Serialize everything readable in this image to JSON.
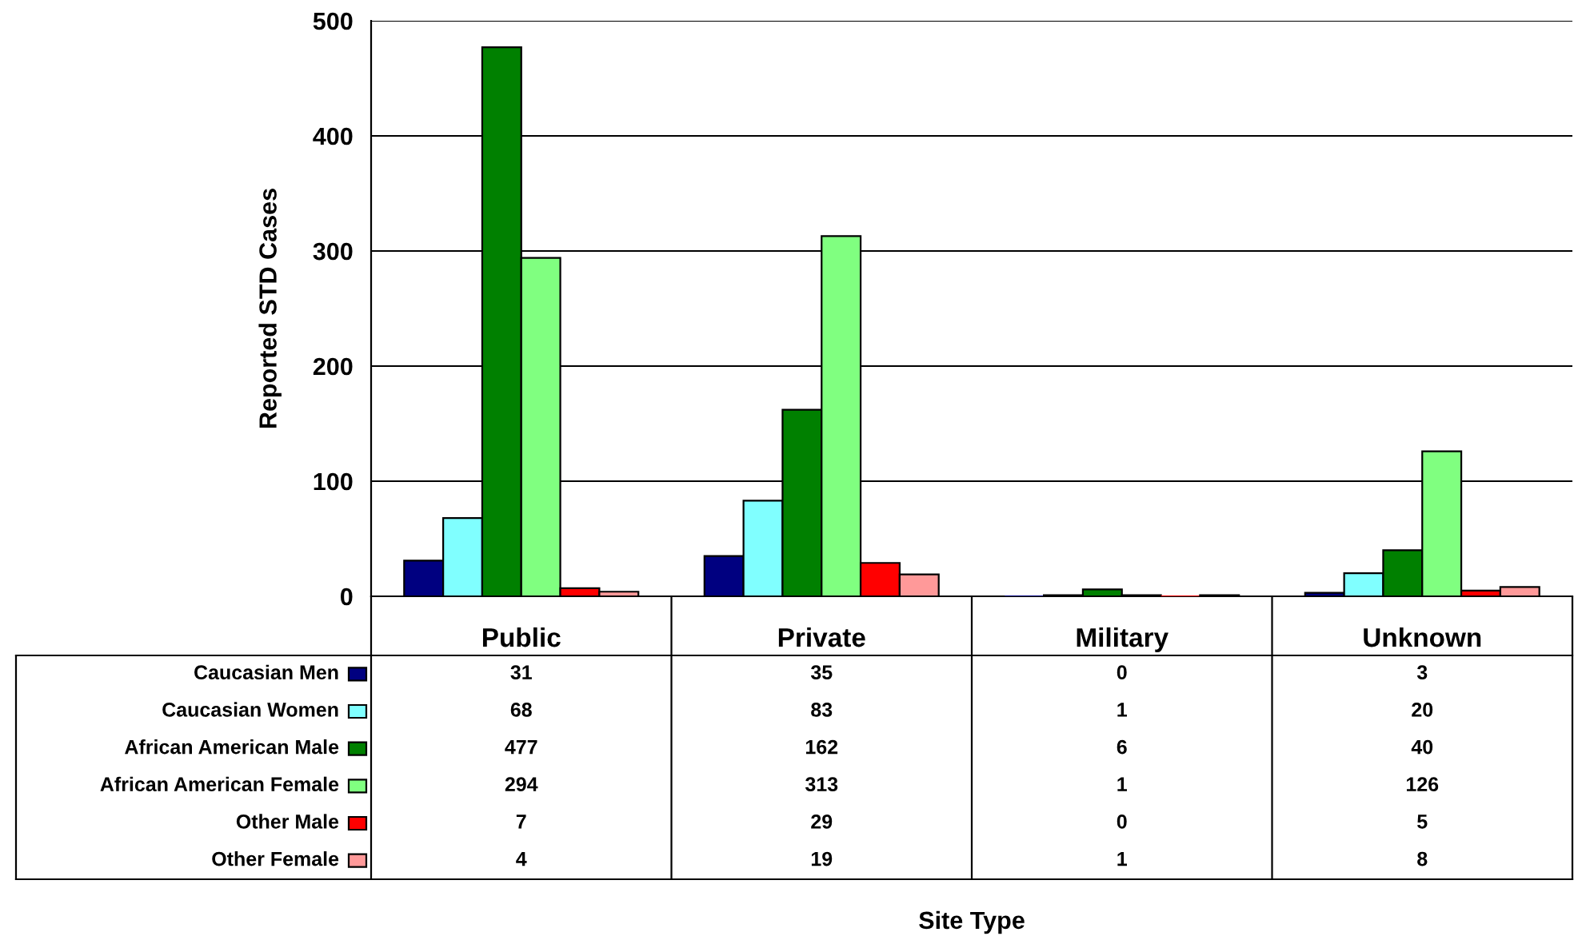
{
  "chart_data": {
    "type": "bar",
    "annotations": [
      "Site Type"
    ],
    "ylabel": "Reported STD Cases",
    "categories": [
      "Public",
      "Private",
      "Military",
      "Unknown"
    ],
    "ylim": [
      0,
      500
    ],
    "yticks": [
      0,
      100,
      200,
      300,
      400,
      500
    ],
    "grid": "y",
    "data_labels": true,
    "legend": "bottom left",
    "series": [
      {
        "name": "Caucasian Men",
        "color": "#000080",
        "values": [
          31,
          35,
          0,
          3
        ]
      },
      {
        "name": "Caucasian Women",
        "color": "#80ffff",
        "values": [
          68,
          83,
          1,
          20
        ]
      },
      {
        "name": "African American Male",
        "color": "#008000",
        "values": [
          477,
          162,
          6,
          40
        ]
      },
      {
        "name": "African American Female",
        "color": "#80ff80",
        "values": [
          294,
          313,
          1,
          126
        ]
      },
      {
        "name": "Other Male",
        "color": "#ff0000",
        "values": [
          7,
          29,
          0,
          5
        ]
      },
      {
        "name": "Other Female",
        "color": "#ff9999",
        "values": [
          4,
          19,
          1,
          8
        ]
      }
    ]
  }
}
